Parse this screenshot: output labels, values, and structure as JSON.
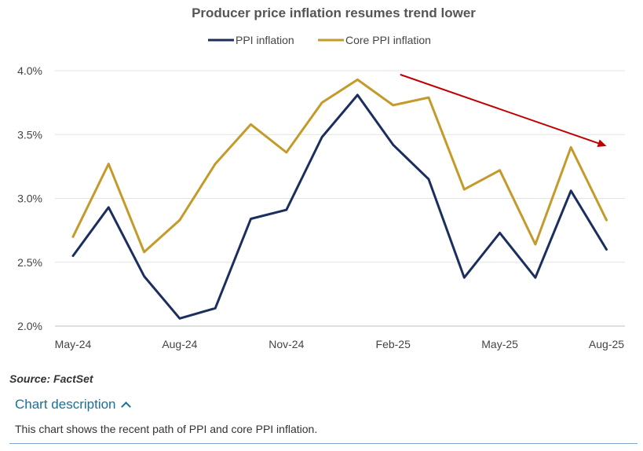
{
  "chart_data": {
    "type": "line",
    "title": "Producer price inflation resumes trend lower",
    "x": [
      "May-24",
      "Jun-24",
      "Jul-24",
      "Aug-24",
      "Sep-24",
      "Oct-24",
      "Nov-24",
      "Dec-24",
      "Jan-25",
      "Feb-25",
      "Mar-25",
      "Apr-25",
      "May-25",
      "Jun-25",
      "Jul-25",
      "Aug-25"
    ],
    "x_tick_labels": [
      "May-24",
      "Aug-24",
      "Nov-24",
      "Feb-25",
      "May-25",
      "Aug-25"
    ],
    "y_tick_labels": [
      "2.0%",
      "2.5%",
      "3.0%",
      "3.5%",
      "4.0%"
    ],
    "ylim": [
      2.0,
      4.0
    ],
    "y_ticks": [
      2.0,
      2.5,
      3.0,
      3.5,
      4.0
    ],
    "grid": true,
    "legend_position": "top-center",
    "series": [
      {
        "name": "PPI inflation",
        "color": "#1b2e5e",
        "values": [
          2.55,
          2.93,
          2.39,
          2.06,
          2.14,
          2.84,
          2.91,
          3.48,
          3.81,
          3.42,
          3.15,
          2.38,
          2.73,
          2.38,
          3.06,
          2.6
        ]
      },
      {
        "name": "Core PPI inflation",
        "color": "#c49a2a",
        "values": [
          2.7,
          3.27,
          2.58,
          2.83,
          3.27,
          3.58,
          3.36,
          3.75,
          3.93,
          3.73,
          3.79,
          3.07,
          3.22,
          2.64,
          3.4,
          2.83
        ]
      }
    ],
    "trend_arrow": {
      "color": "#c00000",
      "from": {
        "x_index": 9.2,
        "y": 3.97
      },
      "to": {
        "x_index": 15.0,
        "y": 3.41
      }
    }
  },
  "source": "Source: FactSet",
  "description": {
    "toggle_label": "Chart description",
    "text": "This chart shows the recent path of PPI and core PPI inflation."
  }
}
